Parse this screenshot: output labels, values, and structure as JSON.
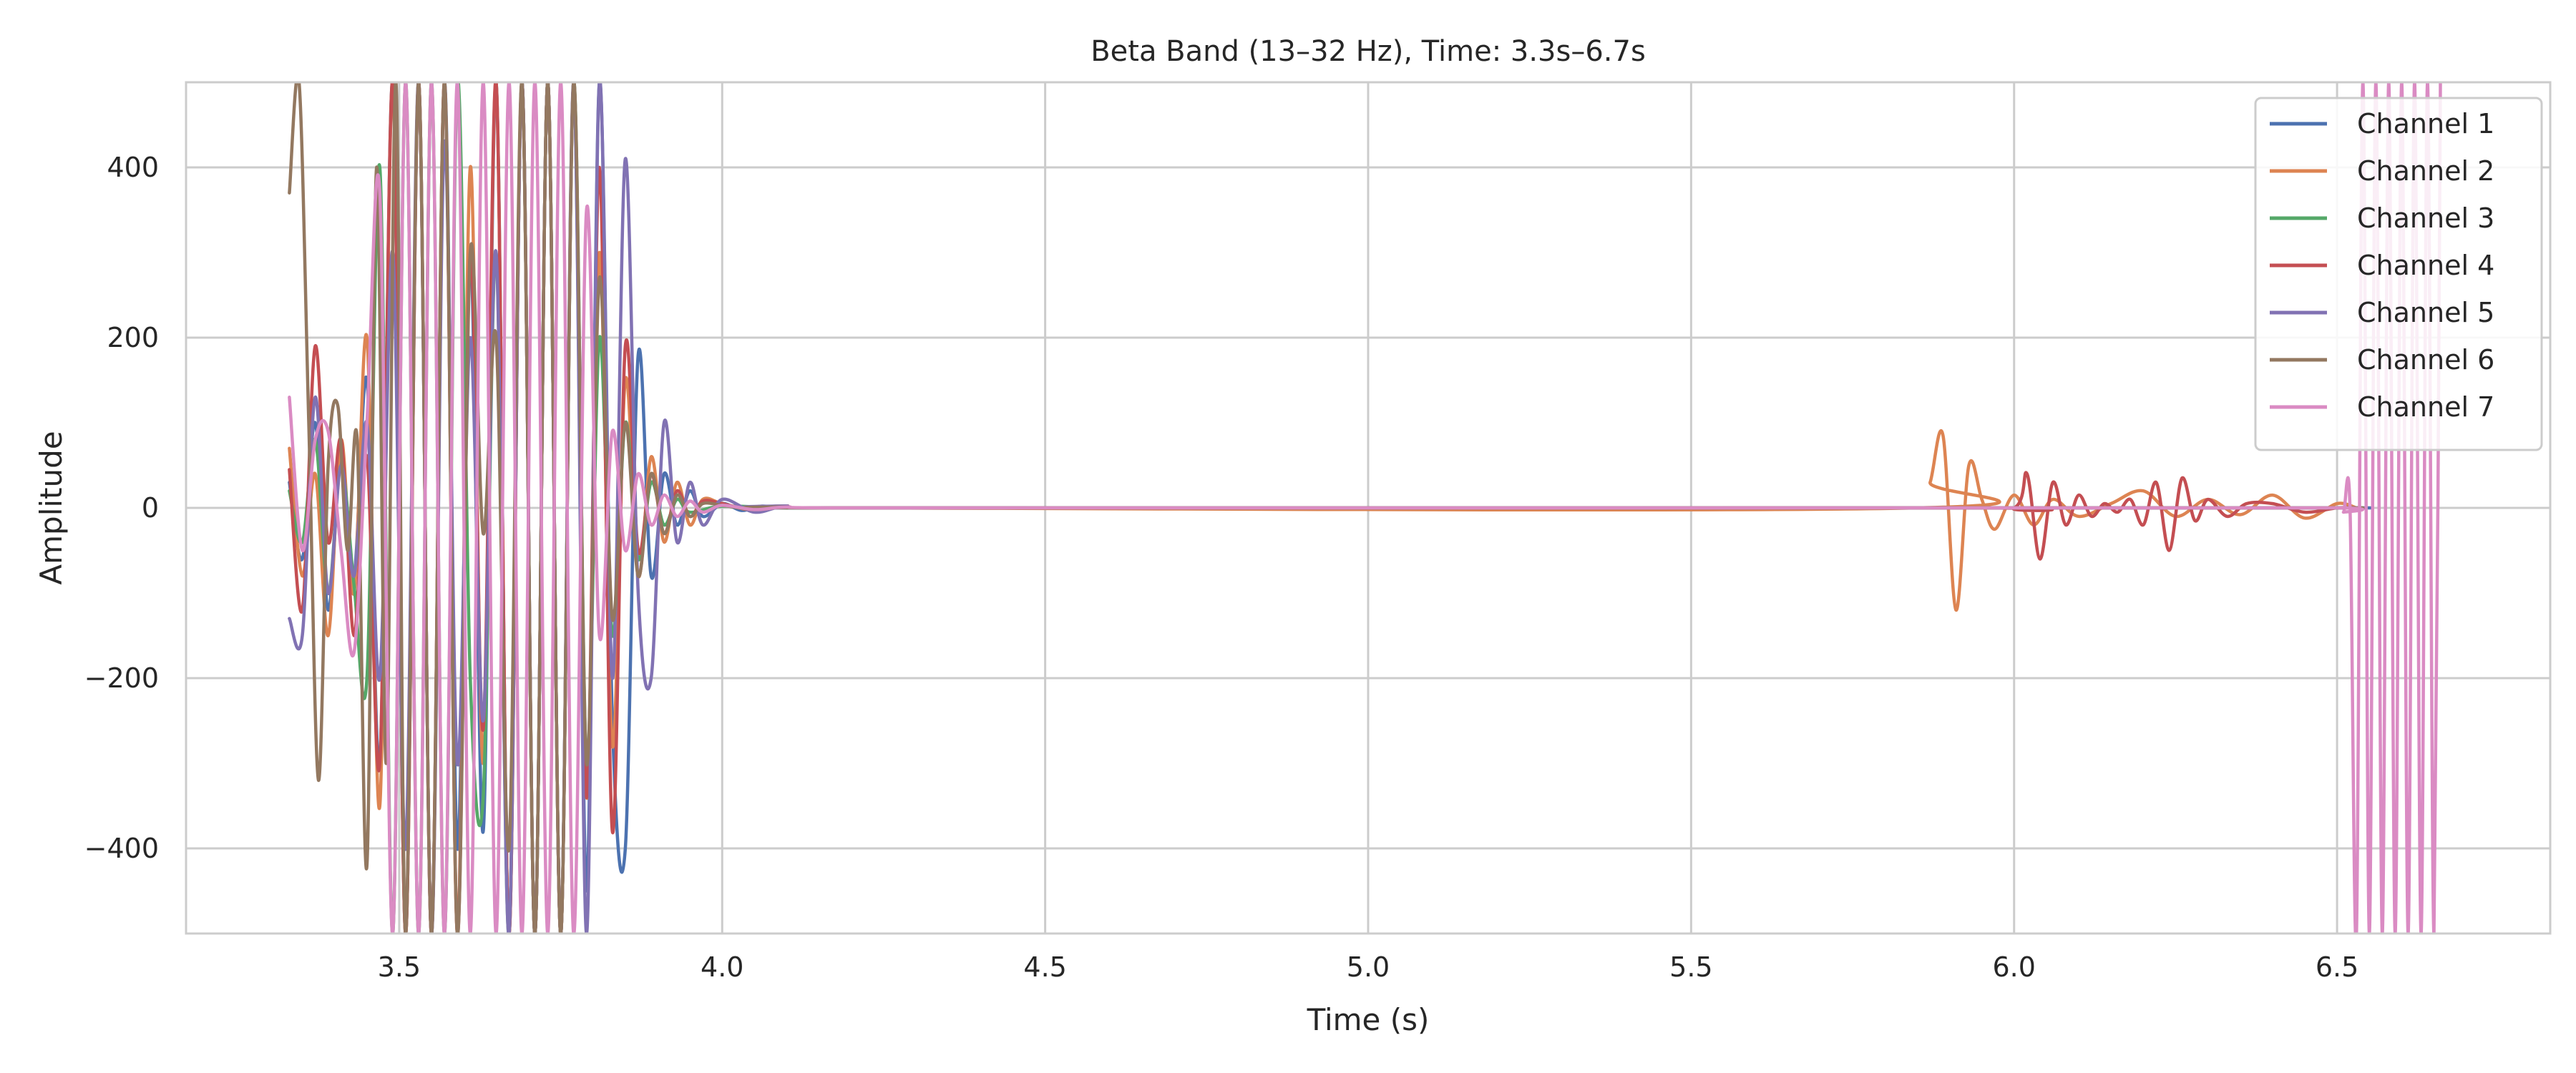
{
  "chart_data": {
    "type": "line",
    "title": "Beta Band (13–32 Hz), Time: 3.3s–6.7s",
    "xlabel": "Time (s)",
    "ylabel": "Amplitude",
    "xlim": [
      3.17,
      6.83
    ],
    "ylim": [
      -500,
      500
    ],
    "xticks": [
      3.5,
      4.0,
      4.5,
      5.0,
      5.5,
      6.0,
      6.5
    ],
    "xtick_labels": [
      "3.5",
      "4.0",
      "4.5",
      "5.0",
      "5.5",
      "6.0",
      "6.5"
    ],
    "yticks": [
      -400,
      -200,
      0,
      200,
      400
    ],
    "ytick_labels": [
      "−400",
      "−200",
      "0",
      "200",
      "400"
    ],
    "grid": true,
    "legend_position": "top-right",
    "series": [
      {
        "name": "Channel 1",
        "color": "#4C72B0",
        "x": [
          3.33,
          3.35,
          3.37,
          3.39,
          3.41,
          3.43,
          3.45,
          3.47,
          3.49,
          3.51,
          3.53,
          3.55,
          3.57,
          3.59,
          3.61,
          3.63,
          3.65,
          3.67,
          3.69,
          3.71,
          3.73,
          3.75,
          3.77,
          3.79,
          3.81,
          3.83,
          3.85,
          3.87,
          3.89,
          3.91,
          3.93,
          3.95,
          3.97,
          4.0,
          4.03,
          4.06,
          4.1,
          4.2,
          5.9,
          6.0,
          6.5,
          6.54
        ],
        "y": [
          30,
          -60,
          100,
          -120,
          60,
          -80,
          150,
          -300,
          500,
          -500,
          500,
          -500,
          500,
          -400,
          300,
          -380,
          500,
          -500,
          500,
          -500,
          500,
          -500,
          500,
          -450,
          500,
          -250,
          -400,
          180,
          -80,
          40,
          -20,
          20,
          -10,
          5,
          -3,
          2,
          0,
          0,
          0,
          0,
          0,
          0
        ]
      },
      {
        "name": "Channel 2",
        "color": "#DD8452",
        "x": [
          3.33,
          3.35,
          3.37,
          3.39,
          3.41,
          3.43,
          3.45,
          3.47,
          3.49,
          3.51,
          3.53,
          3.55,
          3.57,
          3.59,
          3.61,
          3.63,
          3.65,
          3.67,
          3.69,
          3.71,
          3.73,
          3.75,
          3.77,
          3.79,
          3.81,
          3.83,
          3.85,
          3.87,
          3.89,
          3.91,
          3.93,
          3.95,
          3.97,
          4.0,
          4.05,
          4.1,
          4.2,
          5.85,
          5.87,
          5.89,
          5.91,
          5.93,
          5.95,
          5.97,
          6.0,
          6.03,
          6.06,
          6.1,
          6.15,
          6.2,
          6.25,
          6.3,
          6.35,
          6.4,
          6.45,
          6.5,
          6.53
        ],
        "y": [
          70,
          -80,
          40,
          -150,
          80,
          -100,
          200,
          -350,
          500,
          -500,
          500,
          -500,
          500,
          -500,
          400,
          -300,
          500,
          -500,
          500,
          -500,
          500,
          -500,
          500,
          -340,
          300,
          -280,
          150,
          -80,
          60,
          -40,
          30,
          -20,
          10,
          5,
          -3,
          2,
          0,
          0,
          30,
          85,
          -120,
          50,
          10,
          -25,
          15,
          -20,
          10,
          -10,
          5,
          20,
          -10,
          10,
          -8,
          15,
          -12,
          5,
          0
        ]
      },
      {
        "name": "Channel 3",
        "color": "#55A868",
        "x": [
          3.33,
          3.35,
          3.37,
          3.39,
          3.41,
          3.43,
          3.45,
          3.47,
          3.49,
          3.51,
          3.53,
          3.55,
          3.57,
          3.59,
          3.61,
          3.63,
          3.65,
          3.67,
          3.69,
          3.71,
          3.73,
          3.75,
          3.77,
          3.79,
          3.81,
          3.83,
          3.85,
          3.87,
          3.89,
          3.91,
          3.93,
          3.95,
          4.0,
          4.1,
          4.2,
          5.0,
          6.0,
          6.54
        ],
        "y": [
          20,
          -40,
          80,
          -100,
          50,
          -90,
          -200,
          400,
          -500,
          500,
          -500,
          500,
          -500,
          500,
          -200,
          -340,
          300,
          -500,
          500,
          -500,
          500,
          -500,
          500,
          -300,
          200,
          -150,
          100,
          -60,
          30,
          -20,
          10,
          -5,
          2,
          0,
          0,
          0,
          0,
          0
        ]
      },
      {
        "name": "Channel 4",
        "color": "#C44E52",
        "x": [
          3.33,
          3.35,
          3.37,
          3.39,
          3.41,
          3.43,
          3.45,
          3.47,
          3.49,
          3.51,
          3.53,
          3.55,
          3.57,
          3.59,
          3.61,
          3.63,
          3.65,
          3.67,
          3.69,
          3.71,
          3.73,
          3.75,
          3.77,
          3.79,
          3.81,
          3.83,
          3.85,
          3.87,
          3.89,
          3.91,
          3.93,
          3.95,
          3.97,
          4.0,
          4.05,
          4.1,
          4.2,
          5.9,
          6.0,
          6.02,
          6.04,
          6.06,
          6.08,
          6.1,
          6.12,
          6.14,
          6.16,
          6.18,
          6.2,
          6.22,
          6.24,
          6.26,
          6.28,
          6.3,
          6.33,
          6.36,
          6.4,
          6.45,
          6.5,
          6.53
        ],
        "y": [
          45,
          -120,
          190,
          -40,
          80,
          -150,
          60,
          -300,
          500,
          -500,
          500,
          -500,
          500,
          -500,
          300,
          -260,
          500,
          -500,
          500,
          -500,
          500,
          -500,
          500,
          -340,
          400,
          -380,
          190,
          -50,
          40,
          -30,
          20,
          -10,
          8,
          5,
          -3,
          2,
          0,
          0,
          0,
          40,
          -60,
          30,
          -20,
          15,
          -10,
          5,
          -5,
          10,
          -20,
          30,
          -50,
          35,
          -15,
          10,
          -10,
          5,
          5,
          -5,
          0,
          0
        ]
      },
      {
        "name": "Channel 5",
        "color": "#8172B3",
        "x": [
          3.33,
          3.35,
          3.37,
          3.39,
          3.41,
          3.43,
          3.45,
          3.47,
          3.49,
          3.51,
          3.53,
          3.55,
          3.57,
          3.59,
          3.61,
          3.63,
          3.65,
          3.67,
          3.69,
          3.71,
          3.73,
          3.75,
          3.77,
          3.79,
          3.81,
          3.83,
          3.85,
          3.87,
          3.89,
          3.91,
          3.93,
          3.95,
          3.97,
          4.0,
          4.05,
          4.1,
          4.2,
          6.0,
          6.54
        ],
        "y": [
          -130,
          -150,
          130,
          -100,
          50,
          -80,
          100,
          -200,
          300,
          -400,
          500,
          -500,
          430,
          -300,
          200,
          -250,
          300,
          -500,
          500,
          -500,
          500,
          -500,
          500,
          -500,
          500,
          -200,
          410,
          -100,
          -200,
          100,
          -40,
          30,
          -20,
          10,
          -5,
          2,
          0,
          0,
          0
        ]
      },
      {
        "name": "Channel 6",
        "color": "#937860",
        "x": [
          3.33,
          3.345,
          3.36,
          3.375,
          3.39,
          3.405,
          3.42,
          3.435,
          3.45,
          3.465,
          3.48,
          3.495,
          3.51,
          3.53,
          3.55,
          3.57,
          3.59,
          3.61,
          3.63,
          3.65,
          3.67,
          3.69,
          3.71,
          3.73,
          3.75,
          3.77,
          3.79,
          3.81,
          3.83,
          3.85,
          3.87,
          3.89,
          3.91,
          3.93,
          3.95,
          3.97,
          4.0,
          4.05,
          4.1,
          4.2,
          6.0,
          6.54
        ],
        "y": [
          370,
          500,
          100,
          -320,
          50,
          120,
          -50,
          80,
          -420,
          400,
          -300,
          500,
          -500,
          500,
          -500,
          500,
          -500,
          300,
          -30,
          200,
          -400,
          500,
          -500,
          500,
          -500,
          500,
          -300,
          270,
          -130,
          100,
          -80,
          40,
          -30,
          15,
          -10,
          5,
          3,
          -2,
          1,
          0,
          0,
          0
        ]
      },
      {
        "name": "Channel 7",
        "color": "#DA8BC3",
        "x": [
          3.33,
          3.35,
          3.37,
          3.39,
          3.41,
          3.43,
          3.45,
          3.47,
          3.49,
          3.51,
          3.53,
          3.55,
          3.57,
          3.59,
          3.61,
          3.63,
          3.65,
          3.67,
          3.69,
          3.71,
          3.73,
          3.75,
          3.77,
          3.79,
          3.81,
          3.83,
          3.85,
          3.87,
          3.89,
          3.91,
          3.93,
          3.95,
          3.97,
          4.0,
          4.05,
          4.1,
          4.2,
          5.0,
          6.0,
          6.5,
          6.51,
          6.52,
          6.53,
          6.54,
          6.55,
          6.56,
          6.57,
          6.58,
          6.59,
          6.6,
          6.61,
          6.62,
          6.63,
          6.64,
          6.65,
          6.66
        ],
        "y": [
          130,
          -50,
          80,
          90,
          -50,
          -170,
          100,
          370,
          -500,
          500,
          -500,
          500,
          -500,
          500,
          -500,
          500,
          -500,
          500,
          -500,
          500,
          -500,
          500,
          -500,
          350,
          -150,
          90,
          -50,
          40,
          -20,
          15,
          -10,
          8,
          -5,
          3,
          -2,
          1,
          0,
          0,
          0,
          0,
          -5,
          0,
          -500,
          500,
          -500,
          500,
          -500,
          500,
          -500,
          500,
          -500,
          500,
          -500,
          500,
          -500,
          500
        ]
      }
    ]
  }
}
